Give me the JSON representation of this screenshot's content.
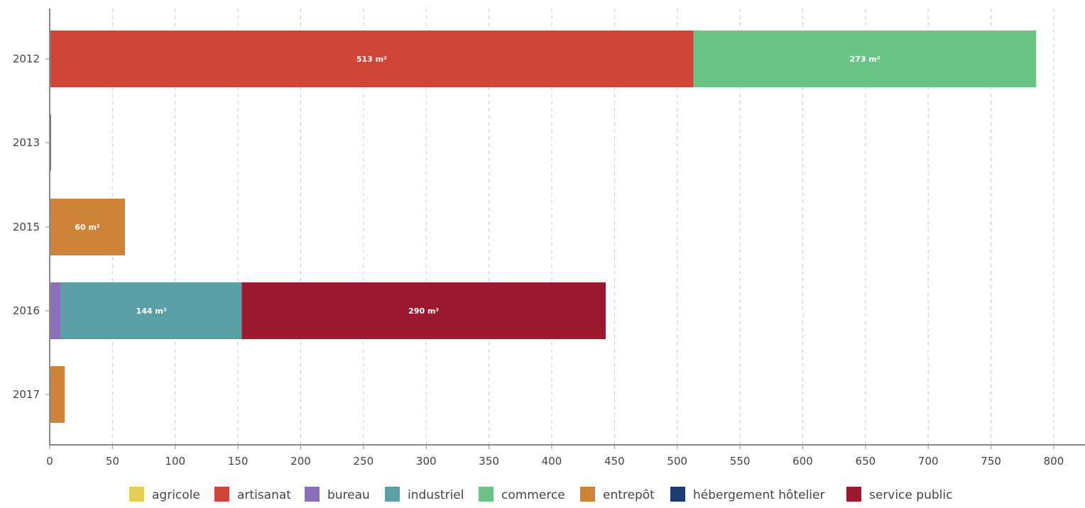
{
  "chart_data": {
    "type": "bar",
    "orientation": "horizontal",
    "stacked": true,
    "categories": [
      "2012",
      "2013",
      "2015",
      "2016",
      "2017"
    ],
    "xlim": [
      0,
      800
    ],
    "x_ticks": [
      0,
      50,
      100,
      150,
      200,
      250,
      300,
      350,
      400,
      450,
      500,
      550,
      600,
      650,
      700,
      750,
      800
    ],
    "grid": "vertical dashed",
    "legend_position": "bottom",
    "unit": "m²",
    "series": [
      {
        "name": "agricole",
        "color": "#e5cf5b",
        "values": [
          0,
          0,
          0,
          0,
          0
        ],
        "labels": [
          "",
          "",
          "",
          "",
          ""
        ]
      },
      {
        "name": "artisanat",
        "color": "#cf4536",
        "values": [
          513,
          0,
          0,
          0,
          0
        ],
        "labels": [
          "513 m²",
          "",
          "",
          "",
          ""
        ]
      },
      {
        "name": "bureau",
        "color": "#8b70b9",
        "values": [
          0,
          0,
          0,
          9,
          0
        ],
        "labels": [
          "",
          "",
          "",
          "",
          ""
        ]
      },
      {
        "name": "industriel",
        "color": "#5a9fa6",
        "values": [
          0,
          0,
          0,
          144,
          0
        ],
        "labels": [
          "",
          "",
          "",
          "144 m²",
          ""
        ]
      },
      {
        "name": "commerce",
        "color": "#6ac486",
        "values": [
          273,
          0,
          0,
          0,
          0
        ],
        "labels": [
          "273 m²",
          "",
          "",
          "",
          ""
        ]
      },
      {
        "name": "entrepôt",
        "color": "#cd8338",
        "values": [
          0,
          0,
          60,
          0,
          12
        ],
        "labels": [
          "",
          "",
          "60 m²",
          "",
          ""
        ]
      },
      {
        "name": "hébergement hôtelier",
        "color": "#1c3b72",
        "values": [
          0,
          0,
          0,
          0,
          0
        ],
        "labels": [
          "",
          "",
          "",
          "",
          ""
        ]
      },
      {
        "name": "service public",
        "color": "#9b1a2f",
        "values": [
          0,
          1,
          0,
          290,
          0
        ],
        "labels": [
          "",
          "",
          "",
          "290 m²",
          ""
        ]
      }
    ]
  }
}
